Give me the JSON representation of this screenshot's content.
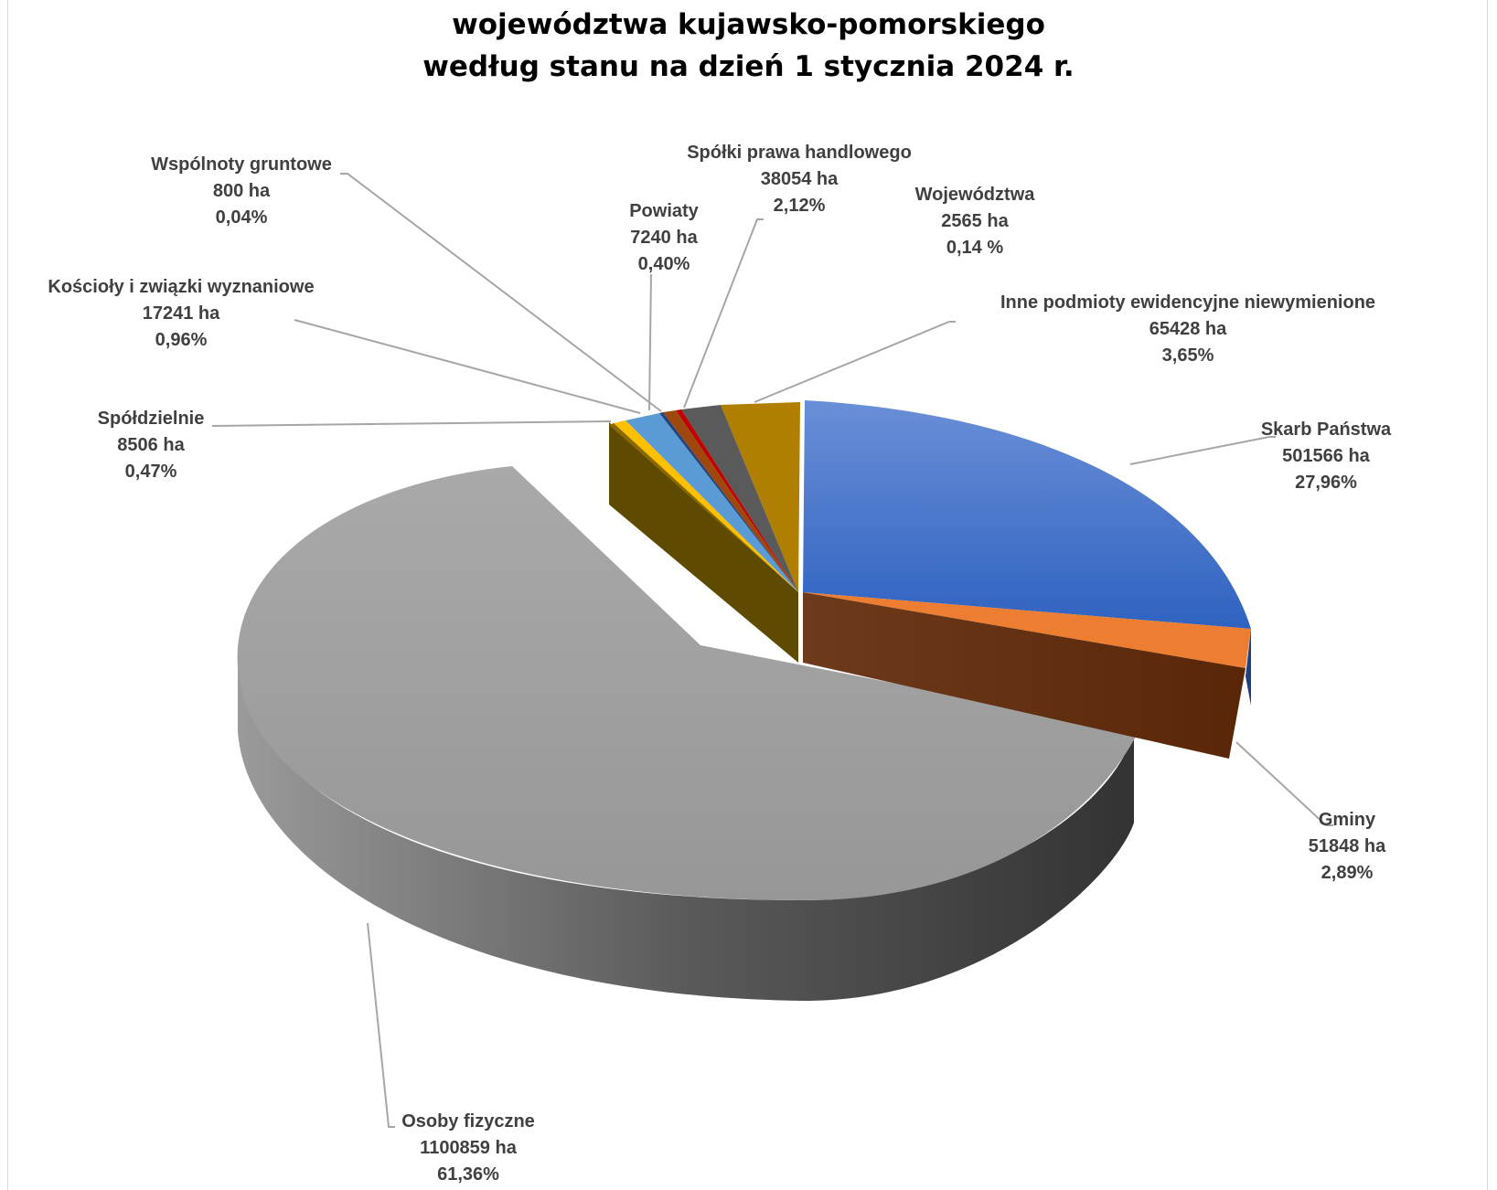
{
  "chart_data": {
    "type": "pie",
    "title_lines": [
      "województwa kujawsko-pomorskiego",
      "według stanu na dzień 1 stycznia 2024 r."
    ],
    "slices": [
      {
        "name": "Skarb Państwa",
        "value_label": "501566 ha",
        "value": 501566,
        "percent_label": "27,96%",
        "percent": 27.96,
        "color": "#4472C4"
      },
      {
        "name": "Gminy",
        "value_label": "51848 ha",
        "value": 51848,
        "percent_label": "2,89%",
        "percent": 2.89,
        "color": "#ED7D31"
      },
      {
        "name": "Osoby fizyczne",
        "value_label": "1100859 ha",
        "value": 1100859,
        "percent_label": "61,36%",
        "percent": 61.36,
        "color": "#A5A5A5"
      },
      {
        "name": "Spółdzielnie",
        "value_label": "8506 ha",
        "value": 8506,
        "percent_label": "0,47%",
        "percent": 0.47,
        "color": "#FFC000"
      },
      {
        "name": "Kościoły i związki wyznaniowe",
        "value_label": "17241 ha",
        "value": 17241,
        "percent_label": "0,96%",
        "percent": 0.96,
        "color": "#5B9BD5"
      },
      {
        "name": "Wspólnoty gruntowe",
        "value_label": "800 ha",
        "value": 800,
        "percent_label": "0,04%",
        "percent": 0.04,
        "color": "#264478"
      },
      {
        "name": "Powiaty",
        "value_label": "7240 ha",
        "value": 7240,
        "percent_label": "0,40%",
        "percent": 0.4,
        "color": "#9E480E"
      },
      {
        "name": "Spółki prawa handlowego",
        "value_label": "38054 ha",
        "value": 38054,
        "percent_label": "2,12%",
        "percent": 2.12,
        "color": "#636363"
      },
      {
        "name": "Województwa",
        "value_label": "2565 ha",
        "value": 2565,
        "percent_label": "0,14 %",
        "percent": 0.14,
        "color": "#C00000"
      },
      {
        "name": "Inne podmioty ewidencyjne niewymienione",
        "value_label": "65428 ha",
        "value": 65428,
        "percent_label": "3,65%",
        "percent": 3.65,
        "color": "#B8860B"
      }
    ],
    "legend": "none",
    "style": "3d-exploded-pie"
  }
}
